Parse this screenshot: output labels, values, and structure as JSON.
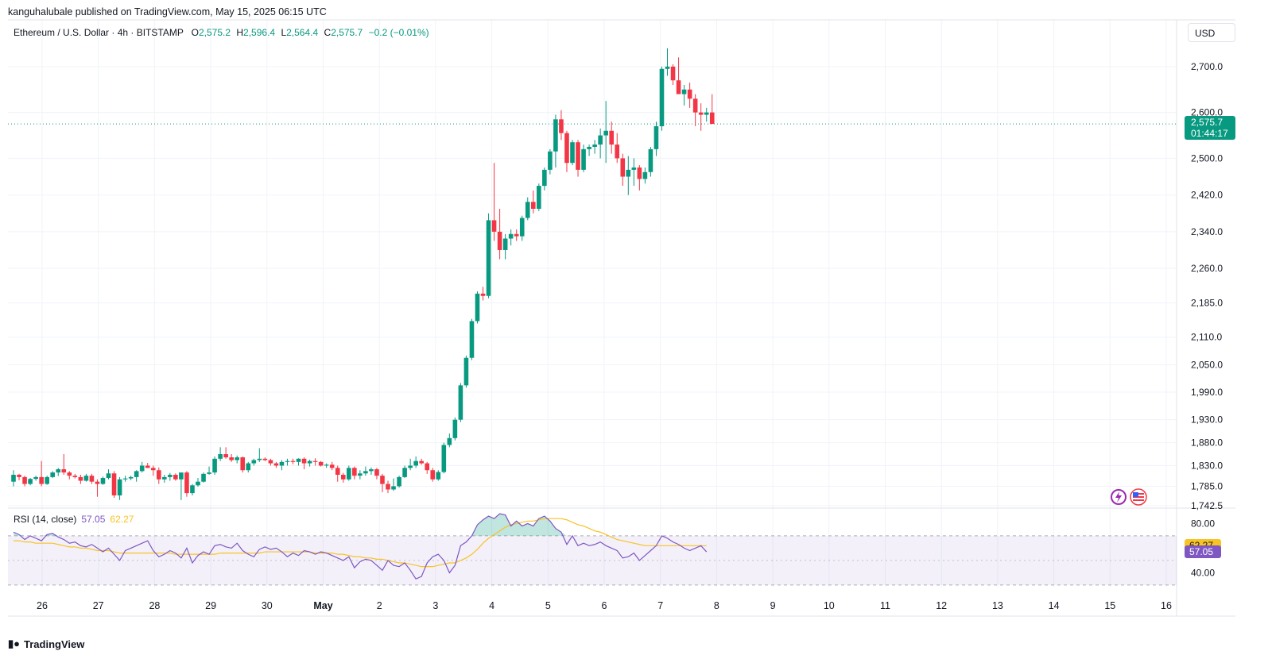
{
  "header": {
    "publisher": "kanguhalubale published on TradingView.com, May 15, 2025 06:15 UTC",
    "symbol": "Ethereum / U.S. Dollar · 4h · BITSTAMP",
    "open_label": "O",
    "open": "2,575.2",
    "high_label": "H",
    "high": "2,596.4",
    "low_label": "L",
    "low": "2,564.4",
    "close_label": "C",
    "close": "2,575.7",
    "change": "−0.2 (−0.01%)"
  },
  "currency": "USD",
  "last_price": {
    "price": "2,575.7",
    "countdown": "01:44:17"
  },
  "rsi": {
    "label": "RSI (14, close)",
    "value": "57.05",
    "ma_value": "62.27"
  },
  "footer": {
    "brand": "TradingView"
  },
  "colors": {
    "up": "#089981",
    "down": "#f23645",
    "rsi": "#7e57c2",
    "rsi_ma": "#f7c325",
    "grid": "#f0f3fa"
  },
  "icons": [
    "tradingview-logo-icon",
    "flash-icon",
    "us-flag-icon"
  ],
  "chart_data": {
    "type": "candlestick",
    "price_ticks": [
      1742.5,
      1785,
      1830,
      1880,
      1930,
      1990,
      2050,
      2110,
      2185,
      2260,
      2340,
      2420,
      2500,
      2600,
      2700
    ],
    "price_tick_labels": [
      "1,742.5",
      "1,785.0",
      "1,830.0",
      "1,880.0",
      "1,930.0",
      "1,990.0",
      "2,050.0",
      "2,110.0",
      "2,185.0",
      "2,260.0",
      "2,340.0",
      "2,420.0",
      "2,500.0",
      "2,600.0",
      "2,700.0"
    ],
    "x_ticks": [
      "26",
      "27",
      "28",
      "29",
      "30",
      "May",
      "2",
      "3",
      "4",
      "5",
      "6",
      "7",
      "8",
      "9",
      "10",
      "11",
      "12",
      "13",
      "14",
      "15",
      "16"
    ],
    "candles_ohlc": [
      [
        1795,
        1820,
        1785,
        1810
      ],
      [
        1810,
        1812,
        1798,
        1805
      ],
      [
        1805,
        1808,
        1785,
        1790
      ],
      [
        1790,
        1803,
        1787,
        1801
      ],
      [
        1801,
        1808,
        1797,
        1805
      ],
      [
        1805,
        1840,
        1785,
        1790
      ],
      [
        1790,
        1808,
        1788,
        1805
      ],
      [
        1805,
        1818,
        1803,
        1815
      ],
      [
        1815,
        1825,
        1807,
        1822
      ],
      [
        1822,
        1855,
        1810,
        1815
      ],
      [
        1815,
        1818,
        1800,
        1808
      ],
      [
        1808,
        1812,
        1802,
        1805
      ],
      [
        1805,
        1810,
        1790,
        1797
      ],
      [
        1797,
        1812,
        1795,
        1808
      ],
      [
        1808,
        1812,
        1790,
        1795
      ],
      [
        1795,
        1800,
        1762,
        1790
      ],
      [
        1790,
        1806,
        1788,
        1803
      ],
      [
        1803,
        1822,
        1800,
        1813
      ],
      [
        1813,
        1818,
        1760,
        1765
      ],
      [
        1765,
        1805,
        1755,
        1800
      ],
      [
        1800,
        1808,
        1795,
        1802
      ],
      [
        1802,
        1808,
        1798,
        1805
      ],
      [
        1805,
        1820,
        1795,
        1818
      ],
      [
        1818,
        1838,
        1815,
        1830
      ],
      [
        1830,
        1836,
        1825,
        1825
      ],
      [
        1825,
        1830,
        1808,
        1820
      ],
      [
        1820,
        1826,
        1790,
        1800
      ],
      [
        1800,
        1810,
        1793,
        1805
      ],
      [
        1805,
        1814,
        1797,
        1810
      ],
      [
        1810,
        1813,
        1797,
        1800
      ],
      [
        1800,
        1812,
        1755,
        1815
      ],
      [
        1815,
        1818,
        1762,
        1770
      ],
      [
        1770,
        1790,
        1765,
        1787
      ],
      [
        1787,
        1803,
        1784,
        1795
      ],
      [
        1795,
        1815,
        1793,
        1812
      ],
      [
        1812,
        1828,
        1810,
        1815
      ],
      [
        1815,
        1850,
        1810,
        1845
      ],
      [
        1845,
        1870,
        1840,
        1855
      ],
      [
        1855,
        1870,
        1845,
        1848
      ],
      [
        1848,
        1855,
        1838,
        1842
      ],
      [
        1842,
        1852,
        1835,
        1848
      ],
      [
        1848,
        1850,
        1815,
        1820
      ],
      [
        1820,
        1838,
        1815,
        1835
      ],
      [
        1835,
        1845,
        1830,
        1842
      ],
      [
        1842,
        1868,
        1838,
        1845
      ],
      [
        1845,
        1848,
        1840,
        1842
      ],
      [
        1842,
        1845,
        1830,
        1835
      ],
      [
        1835,
        1838,
        1825,
        1830
      ],
      [
        1830,
        1842,
        1820,
        1838
      ],
      [
        1838,
        1845,
        1830,
        1840
      ],
      [
        1840,
        1845,
        1833,
        1838
      ],
      [
        1838,
        1846,
        1830,
        1845
      ],
      [
        1845,
        1848,
        1822,
        1835
      ],
      [
        1835,
        1843,
        1828,
        1840
      ],
      [
        1840,
        1846,
        1830,
        1838
      ],
      [
        1838,
        1840,
        1828,
        1830
      ],
      [
        1830,
        1835,
        1825,
        1832
      ],
      [
        1832,
        1838,
        1820,
        1825
      ],
      [
        1825,
        1830,
        1795,
        1810
      ],
      [
        1810,
        1814,
        1793,
        1800
      ],
      [
        1800,
        1830,
        1797,
        1825
      ],
      [
        1825,
        1828,
        1800,
        1808
      ],
      [
        1808,
        1820,
        1800,
        1813
      ],
      [
        1813,
        1828,
        1808,
        1818
      ],
      [
        1818,
        1826,
        1810,
        1822
      ],
      [
        1822,
        1825,
        1800,
        1808
      ],
      [
        1808,
        1812,
        1772,
        1790
      ],
      [
        1790,
        1797,
        1770,
        1778
      ],
      [
        1778,
        1802,
        1775,
        1785
      ],
      [
        1785,
        1808,
        1782,
        1805
      ],
      [
        1805,
        1830,
        1803,
        1825
      ],
      [
        1825,
        1845,
        1820,
        1830
      ],
      [
        1830,
        1850,
        1825,
        1840
      ],
      [
        1840,
        1845,
        1832,
        1835
      ],
      [
        1835,
        1838,
        1812,
        1820
      ],
      [
        1820,
        1825,
        1795,
        1800
      ],
      [
        1800,
        1820,
        1797,
        1816
      ],
      [
        1816,
        1880,
        1813,
        1875
      ],
      [
        1875,
        1900,
        1870,
        1890
      ],
      [
        1890,
        1935,
        1885,
        1930
      ],
      [
        1930,
        2010,
        1925,
        2005
      ],
      [
        2005,
        2070,
        2000,
        2065
      ],
      [
        2065,
        2150,
        2060,
        2145
      ],
      [
        2145,
        2210,
        2140,
        2205
      ],
      [
        2205,
        2220,
        2190,
        2200
      ],
      [
        2200,
        2380,
        2195,
        2365
      ],
      [
        2365,
        2490,
        2320,
        2340
      ],
      [
        2340,
        2390,
        2280,
        2300
      ],
      [
        2300,
        2335,
        2280,
        2325
      ],
      [
        2325,
        2345,
        2310,
        2335
      ],
      [
        2335,
        2345,
        2320,
        2330
      ],
      [
        2330,
        2375,
        2320,
        2370
      ],
      [
        2370,
        2415,
        2365,
        2405
      ],
      [
        2405,
        2430,
        2380,
        2390
      ],
      [
        2390,
        2445,
        2385,
        2440
      ],
      [
        2440,
        2480,
        2430,
        2475
      ],
      [
        2475,
        2520,
        2465,
        2515
      ],
      [
        2515,
        2595,
        2480,
        2585
      ],
      [
        2585,
        2605,
        2540,
        2555
      ],
      [
        2555,
        2560,
        2470,
        2490
      ],
      [
        2490,
        2540,
        2485,
        2535
      ],
      [
        2535,
        2540,
        2460,
        2475
      ],
      [
        2475,
        2530,
        2470,
        2520
      ],
      [
        2520,
        2530,
        2505,
        2525
      ],
      [
        2525,
        2540,
        2510,
        2530
      ],
      [
        2530,
        2565,
        2500,
        2550
      ],
      [
        2550,
        2625,
        2490,
        2560
      ],
      [
        2560,
        2580,
        2510,
        2530
      ],
      [
        2530,
        2555,
        2490,
        2500
      ],
      [
        2500,
        2510,
        2440,
        2460
      ],
      [
        2460,
        2505,
        2420,
        2475
      ],
      [
        2475,
        2500,
        2440,
        2480
      ],
      [
        2480,
        2485,
        2430,
        2455
      ],
      [
        2455,
        2480,
        2445,
        2470
      ],
      [
        2470,
        2525,
        2460,
        2520
      ],
      [
        2520,
        2580,
        2505,
        2570
      ],
      [
        2570,
        2700,
        2560,
        2695
      ],
      [
        2695,
        2740,
        2680,
        2700
      ],
      [
        2700,
        2705,
        2660,
        2670
      ],
      [
        2670,
        2720,
        2650,
        2640
      ],
      [
        2640,
        2660,
        2615,
        2650
      ],
      [
        2650,
        2665,
        2610,
        2630
      ],
      [
        2630,
        2640,
        2570,
        2600
      ],
      [
        2600,
        2620,
        2560,
        2595
      ],
      [
        2595,
        2610,
        2580,
        2600
      ],
      [
        2600,
        2640,
        2575,
        2575
      ]
    ],
    "rsi_values": [
      73,
      71,
      67,
      70,
      68,
      66,
      71,
      72,
      69,
      67,
      64,
      65,
      62,
      61,
      63,
      60,
      57,
      60,
      55,
      50,
      58,
      60,
      62,
      64,
      66,
      58,
      53,
      55,
      58,
      56,
      52,
      60,
      48,
      54,
      57,
      55,
      62,
      63,
      61,
      60,
      64,
      58,
      55,
      53,
      59,
      61,
      59,
      60,
      57,
      53,
      56,
      54,
      58,
      57,
      55,
      57,
      56,
      54,
      52,
      50,
      53,
      44,
      49,
      51,
      50,
      46,
      42,
      50,
      46,
      45,
      48,
      42,
      35,
      37,
      48,
      53,
      55,
      50,
      40,
      46,
      62,
      65,
      70,
      79,
      83,
      86,
      84,
      88,
      87,
      78,
      82,
      78,
      80,
      78,
      84,
      86,
      82,
      76,
      73,
      63,
      70,
      62,
      64,
      62,
      63,
      65,
      62,
      60,
      58,
      52,
      53,
      56,
      50,
      54,
      58,
      62,
      70,
      68,
      65,
      63,
      60,
      58,
      60,
      62,
      57
    ],
    "rsi_ma_values": [
      66,
      66,
      65,
      65,
      64,
      64,
      64,
      64,
      63,
      62,
      61,
      61,
      60,
      60,
      59,
      58,
      58,
      58,
      57,
      56,
      56,
      56,
      56,
      56,
      56,
      56,
      56,
      56,
      56,
      55,
      55,
      55,
      55,
      55,
      55,
      55,
      55,
      56,
      56,
      56,
      56,
      56,
      56,
      56,
      56,
      57,
      57,
      57,
      57,
      57,
      57,
      57,
      57,
      57,
      56,
      56,
      56,
      56,
      55,
      55,
      54,
      53,
      53,
      52,
      52,
      51,
      51,
      50,
      49,
      48,
      48,
      47,
      46,
      45,
      45,
      45,
      46,
      47,
      48,
      48,
      50,
      52,
      55,
      59,
      64,
      68,
      71,
      74,
      77,
      79,
      80,
      81,
      82,
      82,
      83,
      84,
      84,
      84,
      84,
      83,
      81,
      79,
      78,
      76,
      74,
      73,
      71,
      69,
      67,
      66,
      65,
      64,
      63,
      62,
      62,
      62,
      62,
      62,
      62,
      62,
      62,
      62,
      62,
      62,
      62
    ],
    "rsi_ticks": [
      40,
      80
    ],
    "rsi_tick_labels": [
      "40.00",
      "80.00"
    ],
    "rsi_band": [
      30,
      70
    ],
    "price_range": [
      1742.5,
      2750
    ],
    "rsi_range": [
      28,
      88
    ]
  }
}
